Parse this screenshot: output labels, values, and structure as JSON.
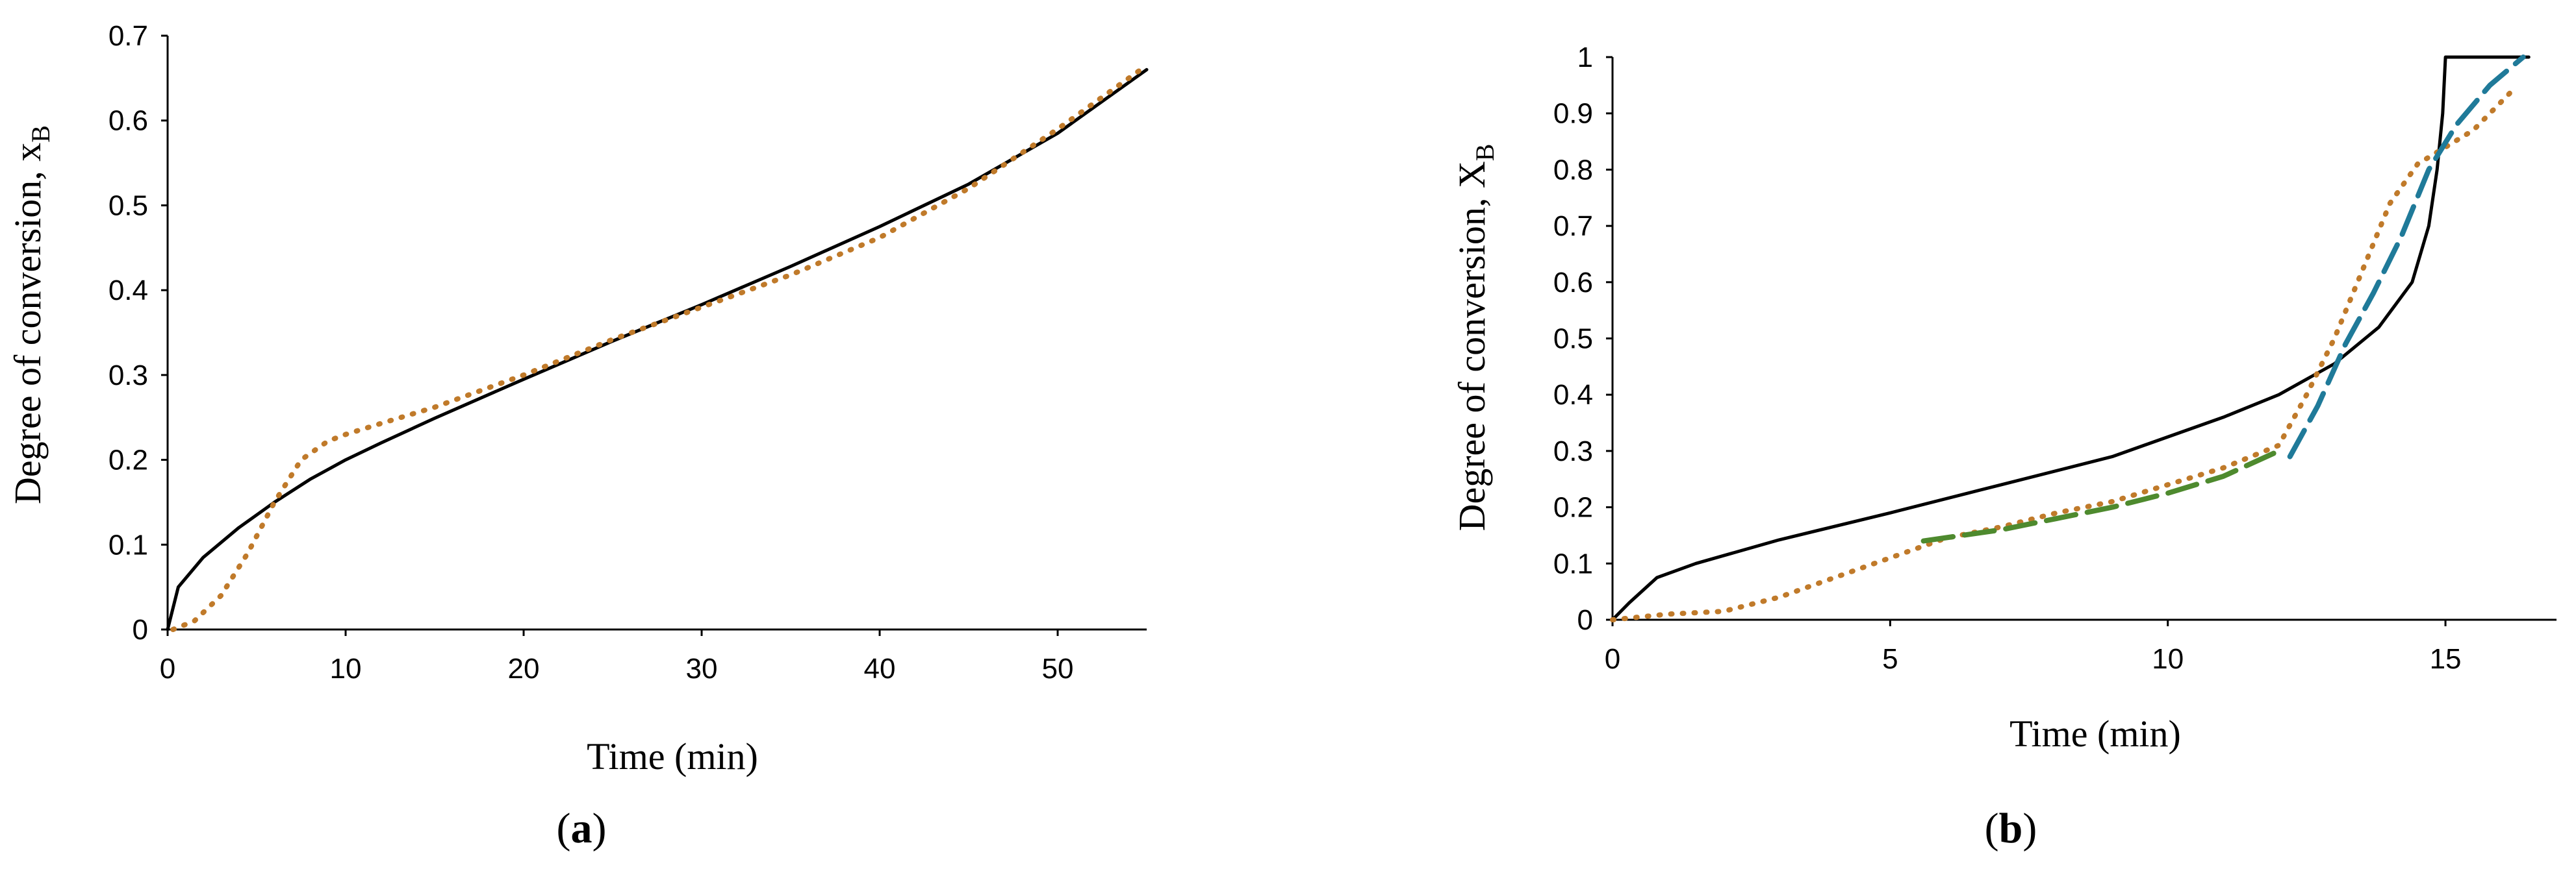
{
  "chart_data": [
    {
      "type": "line",
      "panel": "a",
      "caption": {
        "open": "(",
        "letter": "a",
        "close": ")"
      },
      "xlabel": "Time (min)",
      "ylabel": {
        "main": "Degree of conversion, x",
        "sub": "B"
      },
      "xlim": [
        0,
        55
      ],
      "ylim": [
        0,
        0.7
      ],
      "xticks": [
        "0",
        "10",
        "20",
        "30",
        "40",
        "50"
      ],
      "xtick_values": [
        0,
        10,
        20,
        30,
        40,
        50
      ],
      "yticks": [
        "0",
        "0.1",
        "0.2",
        "0.3",
        "0.4",
        "0.5",
        "0.6",
        "0.7"
      ],
      "ytick_values": [
        0,
        0.1,
        0.2,
        0.3,
        0.4,
        0.5,
        0.6,
        0.7
      ],
      "grid": false,
      "series": [
        {
          "style": "solid",
          "color": "#000000",
          "points": [
            [
              0,
              0
            ],
            [
              0.6,
              0.05
            ],
            [
              2,
              0.085
            ],
            [
              4,
              0.12
            ],
            [
              6,
              0.15
            ],
            [
              8,
              0.177
            ],
            [
              10,
              0.2
            ],
            [
              12,
              0.22
            ],
            [
              15,
              0.249
            ],
            [
              20,
              0.295
            ],
            [
              25,
              0.34
            ],
            [
              30,
              0.383
            ],
            [
              35,
              0.428
            ],
            [
              40,
              0.475
            ],
            [
              45,
              0.525
            ],
            [
              50,
              0.585
            ],
            [
              55,
              0.66
            ]
          ]
        },
        {
          "style": "dotted",
          "color": "#C07A2A",
          "points": [
            [
              0.3,
              0
            ],
            [
              1.5,
              0.01
            ],
            [
              3,
              0.04
            ],
            [
              4.5,
              0.09
            ],
            [
              6,
              0.15
            ],
            [
              7.5,
              0.2
            ],
            [
              9,
              0.222
            ],
            [
              10,
              0.23
            ],
            [
              12,
              0.243
            ],
            [
              15,
              0.262
            ],
            [
              20,
              0.3
            ],
            [
              25,
              0.342
            ],
            [
              30,
              0.38
            ],
            [
              35,
              0.418
            ],
            [
              40,
              0.462
            ],
            [
              45,
              0.52
            ],
            [
              50,
              0.59
            ],
            [
              55,
              0.665
            ]
          ]
        }
      ]
    },
    {
      "type": "line",
      "panel": "b",
      "caption": {
        "open": "(",
        "letter": "b",
        "close": ")"
      },
      "xlabel": "Time (min)",
      "ylabel": {
        "main": "Degree of conversion, X",
        "sub": "B"
      },
      "xlim": [
        0,
        17
      ],
      "ylim": [
        0,
        1
      ],
      "xticks": [
        "0",
        "5",
        "10",
        "15"
      ],
      "xtick_values": [
        0,
        5,
        10,
        15
      ],
      "yticks": [
        "0",
        "0.1",
        "0.2",
        "0.3",
        "0.4",
        "0.5",
        "0.6",
        "0.7",
        "0.8",
        "0.9",
        "1"
      ],
      "ytick_values": [
        0,
        0.1,
        0.2,
        0.3,
        0.4,
        0.5,
        0.6,
        0.7,
        0.8,
        0.9,
        1
      ],
      "grid": false,
      "series": [
        {
          "style": "solid",
          "color": "#000000",
          "points": [
            [
              0,
              0
            ],
            [
              0.3,
              0.03
            ],
            [
              0.8,
              0.075
            ],
            [
              1.5,
              0.1
            ],
            [
              3,
              0.142
            ],
            [
              5,
              0.19
            ],
            [
              7,
              0.24
            ],
            [
              9,
              0.29
            ],
            [
              11,
              0.36
            ],
            [
              12,
              0.4
            ],
            [
              13,
              0.455
            ],
            [
              13.8,
              0.52
            ],
            [
              14.4,
              0.6
            ],
            [
              14.7,
              0.7
            ],
            [
              14.85,
              0.8
            ],
            [
              14.95,
              0.9
            ],
            [
              15,
              1
            ],
            [
              16.5,
              1
            ]
          ]
        },
        {
          "style": "dotted",
          "color": "#C07A2A",
          "points": [
            [
              0,
              0
            ],
            [
              1,
              0.01
            ],
            [
              2,
              0.015
            ],
            [
              3,
              0.04
            ],
            [
              4,
              0.075
            ],
            [
              5,
              0.11
            ],
            [
              6,
              0.145
            ],
            [
              7,
              0.165
            ],
            [
              8,
              0.19
            ],
            [
              9,
              0.21
            ],
            [
              10,
              0.24
            ],
            [
              11,
              0.27
            ],
            [
              12,
              0.31
            ],
            [
              12.5,
              0.4
            ],
            [
              13,
              0.5
            ],
            [
              13.5,
              0.62
            ],
            [
              14,
              0.74
            ],
            [
              14.5,
              0.81
            ],
            [
              15,
              0.84
            ],
            [
              15.5,
              0.87
            ],
            [
              16.2,
              0.94
            ]
          ]
        },
        {
          "style": "dashed",
          "color": "#4E8A2E",
          "points": [
            [
              5.6,
              0.14
            ],
            [
              7,
              0.16
            ],
            [
              8,
              0.18
            ],
            [
              9,
              0.2
            ],
            [
              10,
              0.225
            ],
            [
              11,
              0.255
            ],
            [
              12,
              0.3
            ]
          ]
        },
        {
          "style": "dashed",
          "color": "#1F7A99",
          "points": [
            [
              12.2,
              0.29
            ],
            [
              12.7,
              0.38
            ],
            [
              13.2,
              0.49
            ],
            [
              13.7,
              0.58
            ],
            [
              14.2,
              0.68
            ],
            [
              14.7,
              0.8
            ],
            [
              15.2,
              0.88
            ],
            [
              15.8,
              0.95
            ],
            [
              16.4,
              1
            ]
          ]
        }
      ]
    }
  ]
}
